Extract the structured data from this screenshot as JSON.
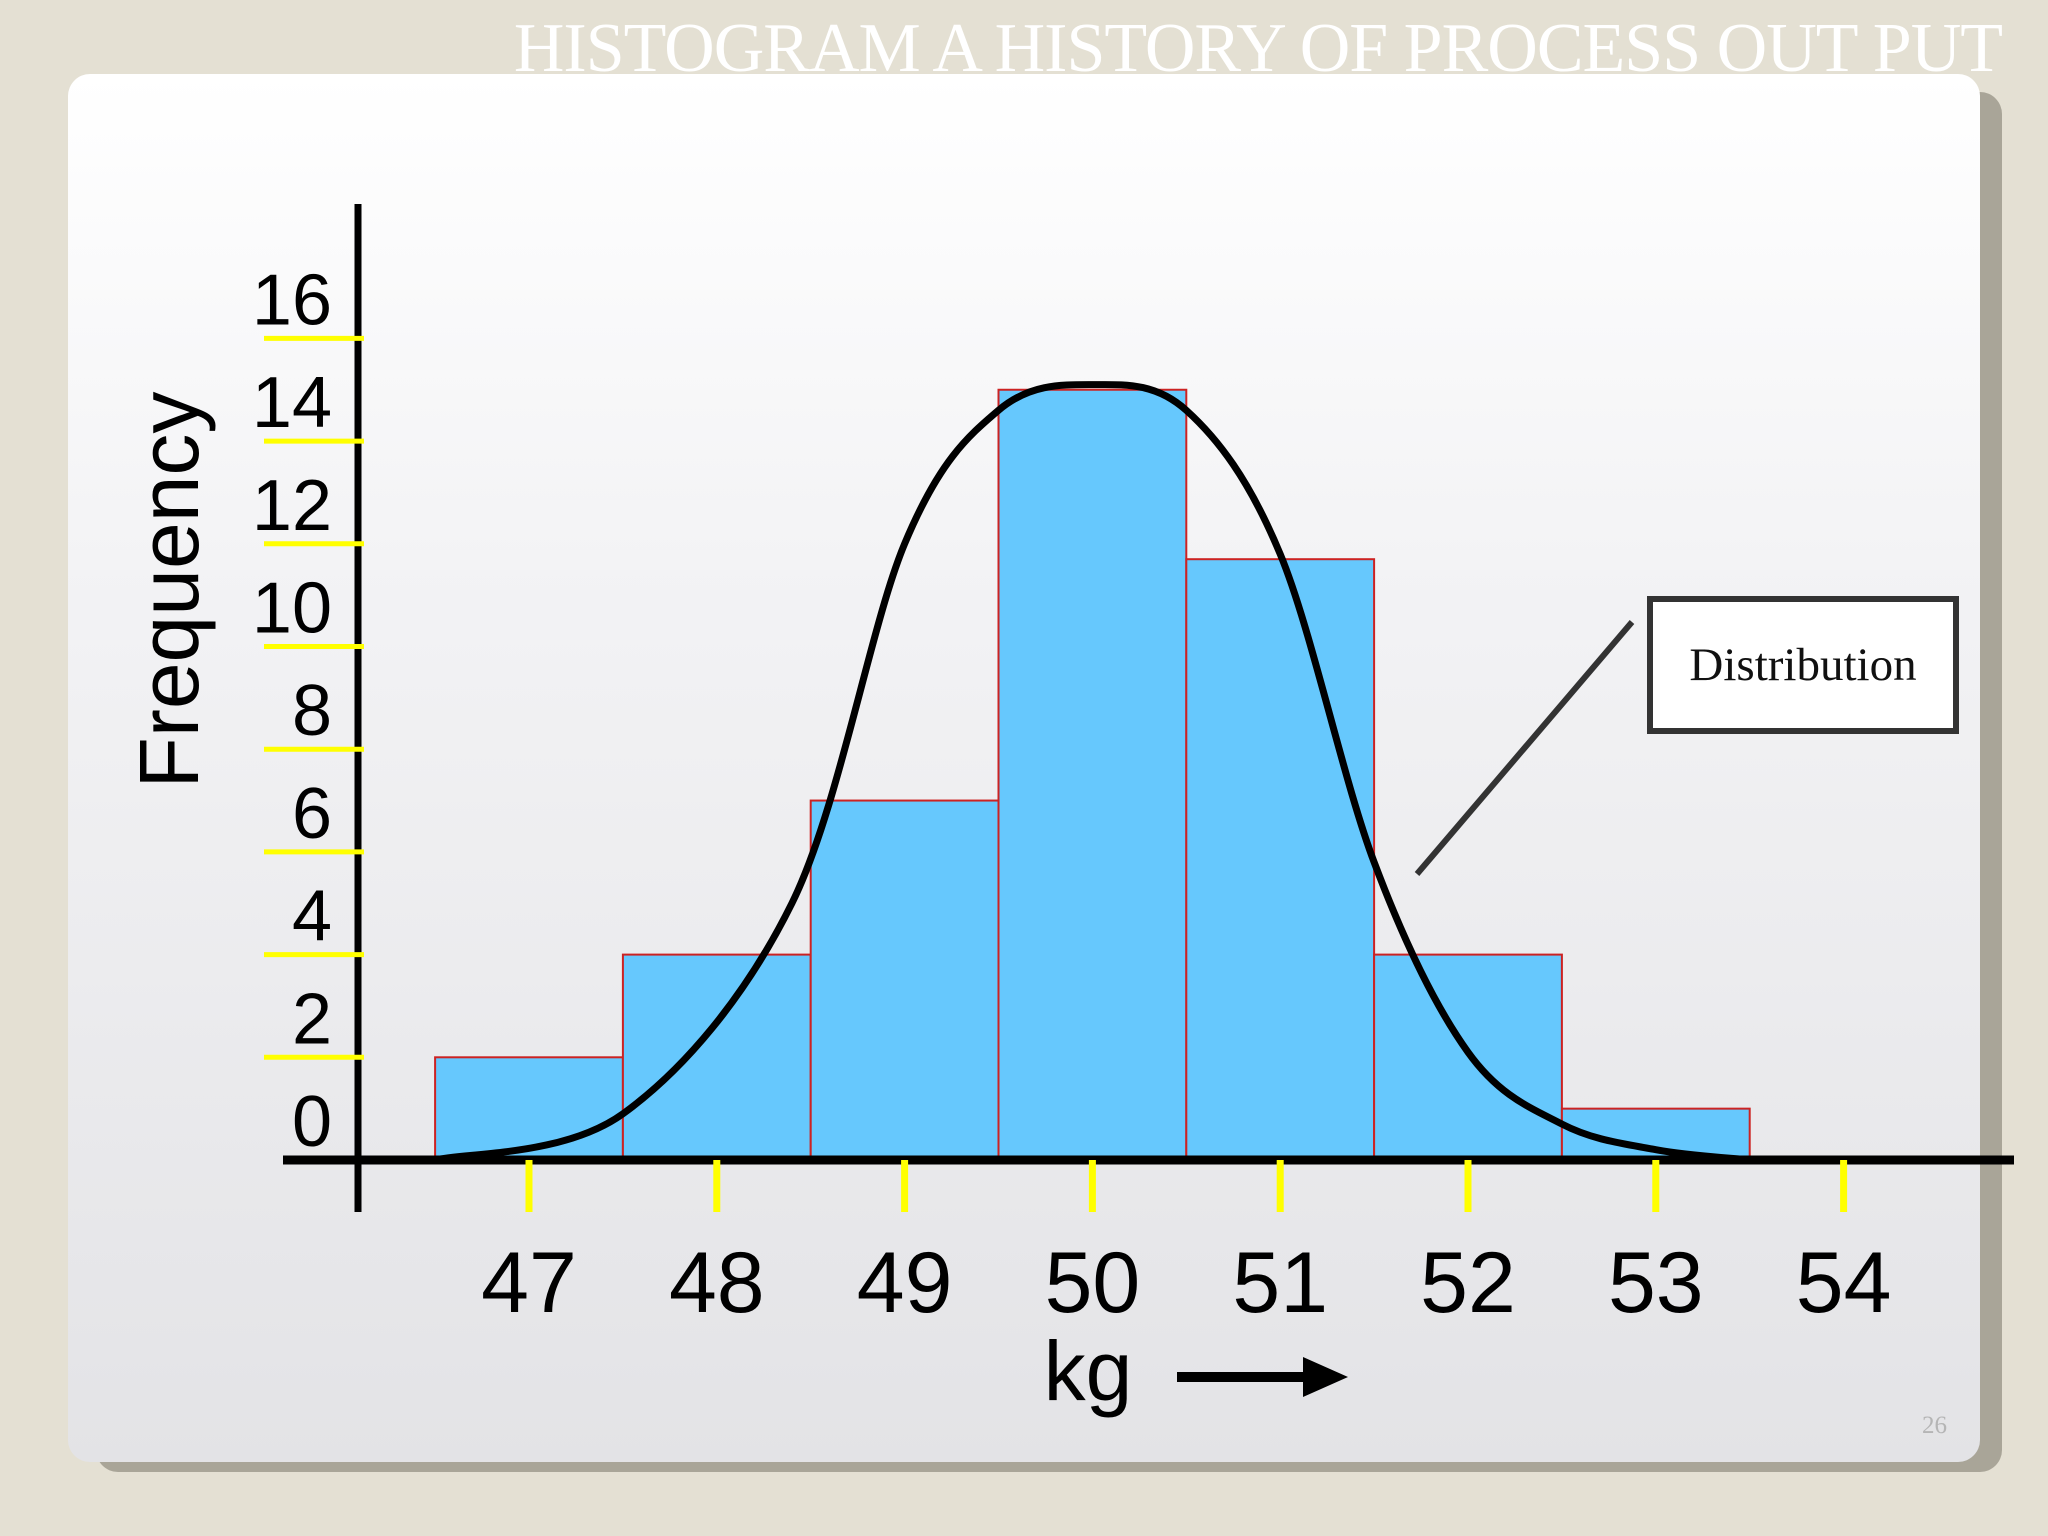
{
  "slide": {
    "title": "HISTOGRAM A HISTORY OF PROCESS OUT PUT",
    "page_number": "26"
  },
  "callout": {
    "label": "Distribution"
  },
  "colors": {
    "bar_fill": "#66c8fd",
    "bar_stroke": "#cc2222",
    "tick_marks": "#ffff00",
    "axis": "#000000",
    "curve": "#000000"
  },
  "chart_data": {
    "type": "bar",
    "title": "",
    "xlabel": "kg",
    "ylabel": "Frequency",
    "categories": [
      "47",
      "48",
      "49",
      "50",
      "51",
      "52",
      "53"
    ],
    "values": [
      2,
      4,
      7,
      15,
      11.7,
      4,
      1
    ],
    "x_tick_labels": [
      "47",
      "48",
      "49",
      "50",
      "51",
      "52",
      "53",
      "54"
    ],
    "y_tick_labels": [
      "0",
      "2",
      "4",
      "6",
      "8",
      "10",
      "12",
      "14",
      "16"
    ],
    "ylim": [
      0,
      16
    ],
    "grid": false,
    "overlay": {
      "type": "line",
      "name": "Distribution",
      "x": [
        46.5,
        47.5,
        48.4,
        49.0,
        49.5,
        50.0,
        50.5,
        51.0,
        51.5,
        52.0,
        52.5,
        53.0,
        53.5
      ],
      "y": [
        0,
        0.9,
        5.0,
        12.0,
        14.6,
        15.1,
        14.6,
        11.8,
        5.8,
        2.1,
        0.7,
        0.2,
        0
      ]
    }
  }
}
